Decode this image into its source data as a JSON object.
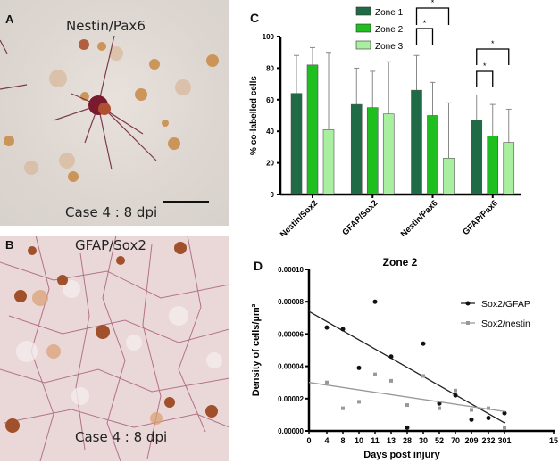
{
  "panels": {
    "A": {
      "letter": "A",
      "stain": "Nestin/Pax6",
      "caption": "Case 4 : 8 dpi"
    },
    "B": {
      "letter": "B",
      "stain": "GFAP/Sox2",
      "caption": "Case 4 : 8 dpi"
    },
    "C": {
      "letter": "C"
    },
    "D": {
      "letter": "D"
    }
  },
  "colors": {
    "zone1": "#1e6b45",
    "zone2": "#1fbf1f",
    "zone3": "#a8f0a0",
    "sox2gfap": "#111111",
    "sox2nestin": "#999999"
  },
  "chart_data": [
    {
      "type": "bar",
      "title": "",
      "xlabel": "",
      "ylabel": "% co-labelled cells",
      "ylim": [
        0,
        100
      ],
      "yticks": [
        0,
        20,
        40,
        60,
        80,
        100
      ],
      "categories": [
        "Nestin/Sox2",
        "GFAP/Sox2",
        "Nestin/Pax6",
        "GFAP/Pax6"
      ],
      "series": [
        {
          "name": "Zone 1",
          "values": [
            64,
            57,
            66,
            47
          ],
          "error_upper": [
            88,
            80,
            88,
            63
          ]
        },
        {
          "name": "Zone 2",
          "values": [
            82,
            55,
            50,
            37
          ],
          "error_upper": [
            93,
            78,
            71,
            57
          ]
        },
        {
          "name": "Zone 3",
          "values": [
            41,
            51,
            23,
            33
          ],
          "error_upper": [
            90,
            84,
            58,
            54
          ]
        }
      ],
      "annotations": [
        {
          "text": "*",
          "group": "Nestin/Pax6",
          "between": [
            "Zone 1",
            "Zone 2"
          ]
        },
        {
          "text": "*",
          "group": "Nestin/Pax6",
          "between": [
            "Zone 1",
            "Zone 3"
          ]
        },
        {
          "text": "*",
          "group": "GFAP/Pax6",
          "between": [
            "Zone 1",
            "Zone 2"
          ]
        },
        {
          "text": "*",
          "group": "GFAP/Pax6",
          "between": [
            "Zone 1",
            "Zone 3"
          ]
        }
      ],
      "legend_position": "top"
    },
    {
      "type": "scatter",
      "title": "Zone 2",
      "xlabel": "Days post injury",
      "ylabel": "Density of cells/µm²",
      "ylim": [
        0,
        0.0001
      ],
      "yticks": [
        "0.00000",
        "0.00002",
        "0.00004",
        "0.00006",
        "0.00008",
        "0.00010"
      ],
      "x": [
        "0",
        "4",
        "8",
        "10",
        "11",
        "13",
        "28",
        "30",
        "52",
        "70",
        "209",
        "232",
        "301",
        "15"
      ],
      "series": [
        {
          "name": "Sox2/GFAP",
          "x": [
            "4",
            "8",
            "10",
            "11",
            "13",
            "28",
            "30",
            "52",
            "70",
            "209",
            "232",
            "301"
          ],
          "values": [
            6.4e-05,
            6.3e-05,
            3.9e-05,
            8e-05,
            4.6e-05,
            2e-06,
            5.4e-05,
            1.7e-05,
            2.2e-05,
            7e-06,
            8e-06,
            1.1e-05
          ],
          "trend": {
            "start": 7.4e-05,
            "end": 5e-06
          }
        },
        {
          "name": "Sox2/nestin",
          "x": [
            "4",
            "8",
            "10",
            "11",
            "13",
            "28",
            "30",
            "52",
            "70",
            "209",
            "232",
            "301"
          ],
          "values": [
            3e-05,
            1.4e-05,
            1.8e-05,
            3.5e-05,
            3.1e-05,
            1.6e-05,
            3.4e-05,
            1.4e-05,
            2.5e-05,
            1.3e-05,
            1.4e-05,
            2e-06
          ],
          "trend": {
            "start": 3e-05,
            "end": 1.2e-05
          }
        }
      ],
      "legend_position": "upper right"
    }
  ]
}
